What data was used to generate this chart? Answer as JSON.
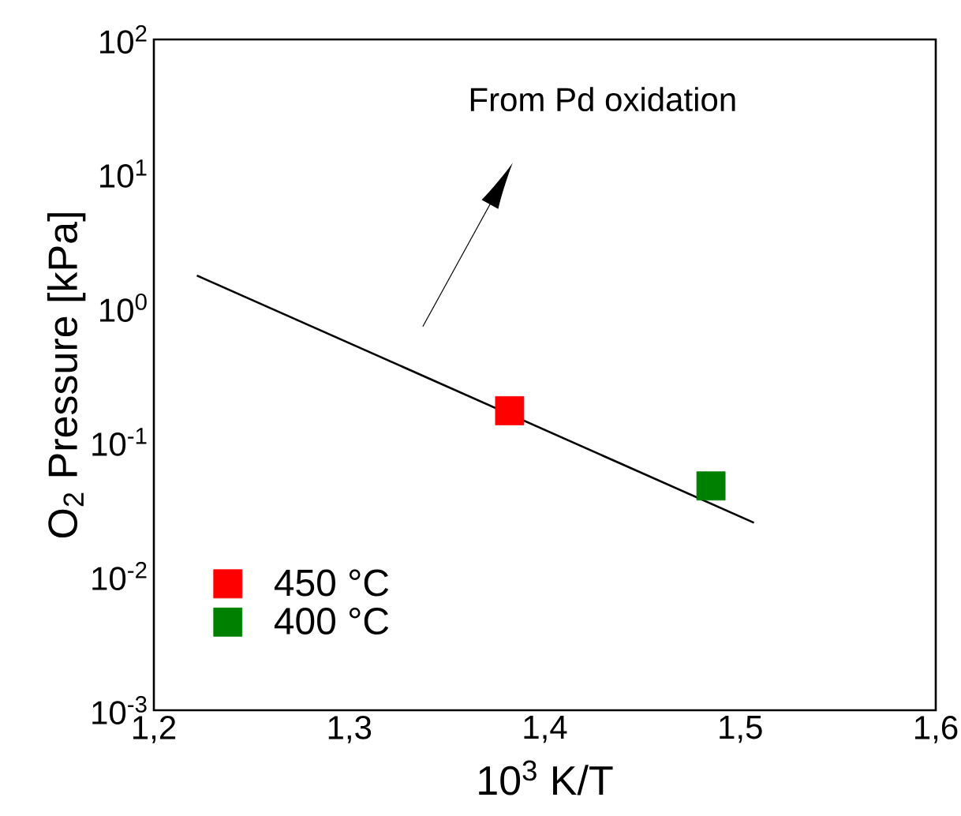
{
  "chart_data": {
    "type": "scatter",
    "xlabel": "10$^{3}$ K/T",
    "ylabel": "O$_{2}$ Pressure [kPa]",
    "annotations": [
      "From Pd oxidation"
    ],
    "log": "y",
    "xlim": [
      1.2,
      1.6
    ],
    "ylim": [
      0.001,
      100
    ],
    "xticks": [
      {
        "value": 1.2,
        "label": "1,2"
      },
      {
        "value": 1.3,
        "label": "1,3"
      },
      {
        "value": 1.4,
        "label": "1,4"
      },
      {
        "value": 1.5,
        "label": "1,5"
      },
      {
        "value": 1.6,
        "label": "1,6"
      }
    ],
    "yticks": [
      {
        "value": 0.001,
        "label": "10$^{-3}$"
      },
      {
        "value": 0.01,
        "label": "10$^{-2}$"
      },
      {
        "value": 0.1,
        "label": "10$^{-1}$"
      },
      {
        "value": 1,
        "label": "10$^{0}$"
      },
      {
        "value": 10,
        "label": "10$^{1}$"
      },
      {
        "value": 100,
        "label": "10$^{2}$"
      }
    ],
    "series": [
      {
        "type": "line",
        "marker": "none",
        "color": "#000000",
        "x": [
          1.222,
          1.507
        ],
        "values": [
          1.74,
          0.025
        ]
      },
      {
        "name": "450 °C",
        "color": "#ff0000",
        "x": [
          1.382
        ],
        "values": [
          0.171
        ]
      },
      {
        "name": "400 °C",
        "color": "#008000",
        "x": [
          1.485
        ],
        "values": [
          0.047
        ]
      }
    ],
    "marker": "square",
    "legend": "bottom left",
    "grid": false
  }
}
